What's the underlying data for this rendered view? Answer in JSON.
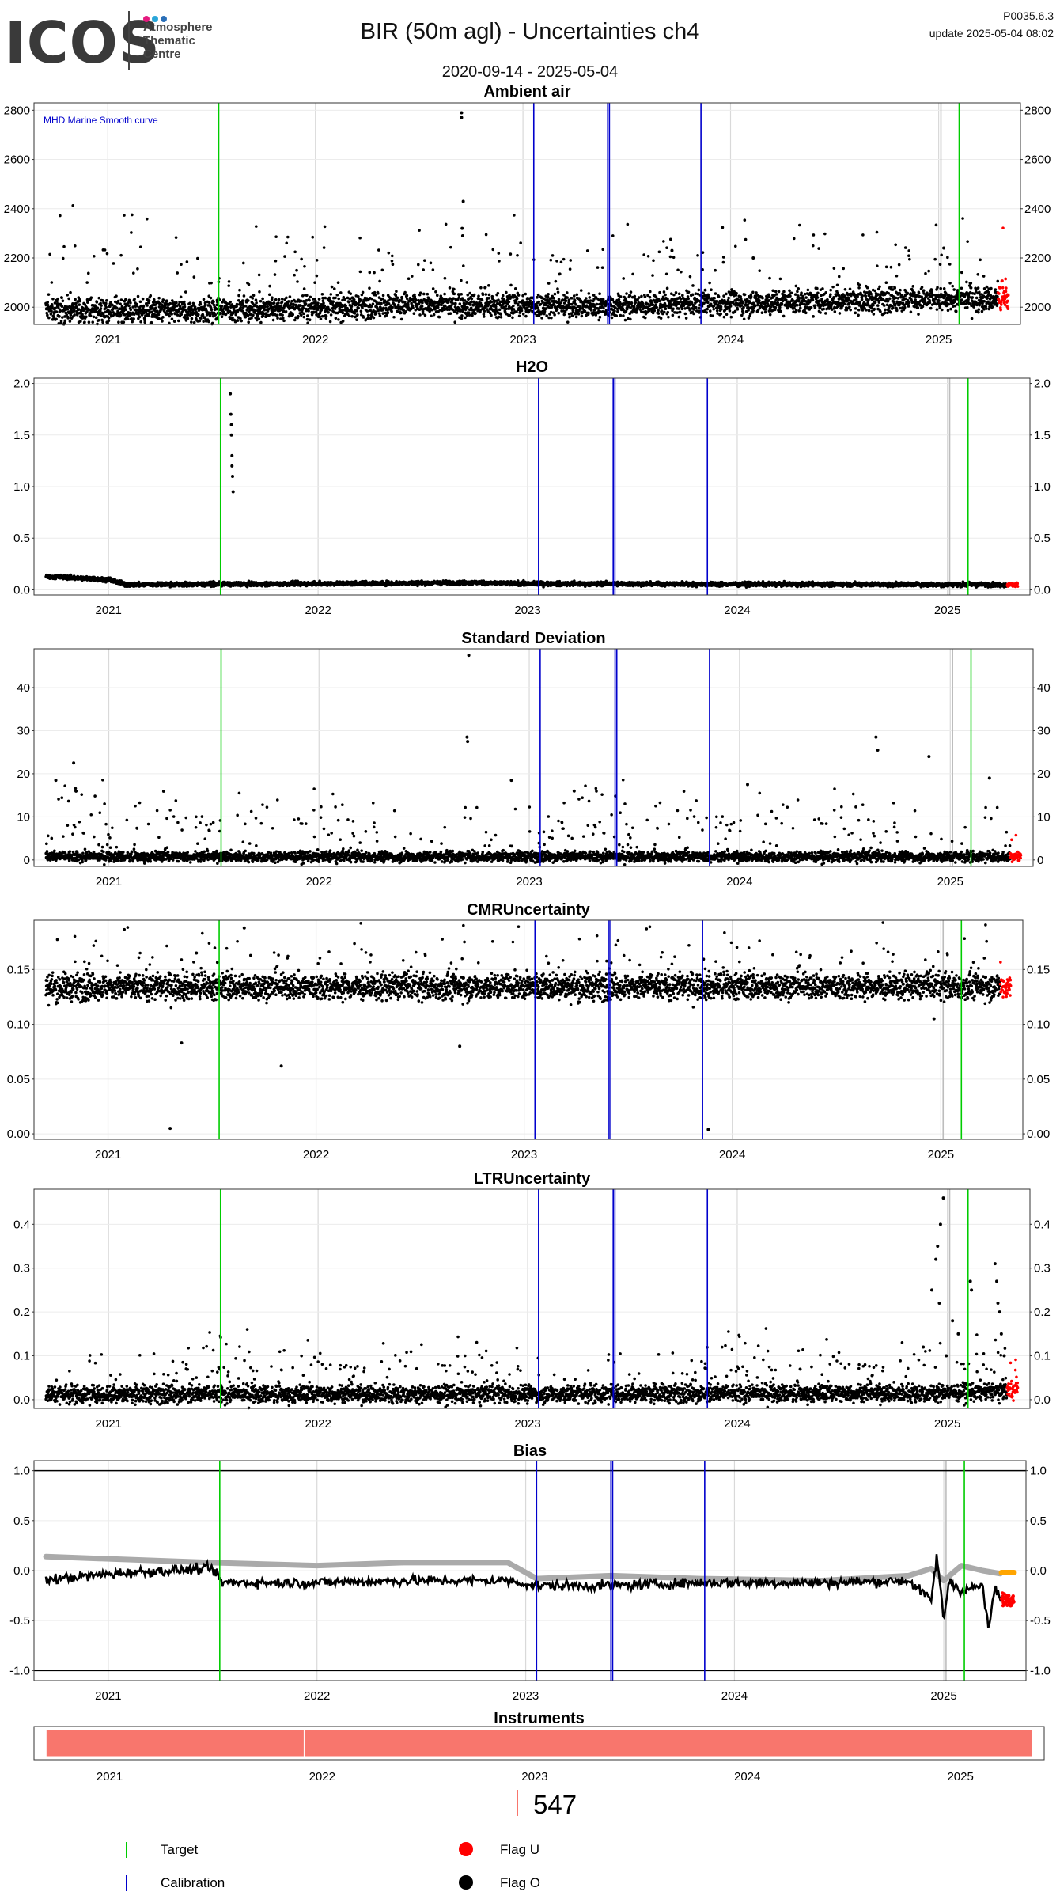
{
  "header": {
    "logo_text": "ICOS",
    "logo_sub": [
      "Atmosphere",
      "Thematic",
      "Centre"
    ],
    "logo_dot_colors": [
      "#e5197f",
      "#2aa6d9",
      "#2a6fb8"
    ],
    "title": "BIR  (50m agl) - Uncertainties ch4",
    "date_range": "2020-09-14 - 2025-05-04",
    "version": "P0035.6.3",
    "update": "update  2025-05-04 08:02"
  },
  "legend": {
    "target_label": "Target",
    "calibration_label": "Calibration",
    "flag_u_label": "Flag U",
    "flag_o_label": "Flag O",
    "target_color": "#00cc00",
    "calibration_color": "#0000cc",
    "flag_u_color": "#ff0000",
    "flag_o_color": "#000000"
  },
  "instrument_count": "547",
  "chart_data": [
    {
      "type": "scatter",
      "title": "Ambient air",
      "annotation": "MHD Marine Smooth curve",
      "xlim": [
        "2020-09-14",
        "2025-05-04"
      ],
      "ylim": [
        1930,
        2830
      ],
      "yticks": [
        2000,
        2200,
        2400,
        2600,
        2800
      ],
      "baseline": 2000,
      "noise": 25,
      "spike_rate": 0.06,
      "spike_amp": 120,
      "trend": [
        [
          "2020-09-14",
          1990
        ],
        [
          "2021-06-01",
          1985
        ],
        [
          "2022-06-01",
          2010
        ],
        [
          "2023-06-01",
          2005
        ],
        [
          "2024-06-01",
          2025
        ],
        [
          "2025-05-04",
          2035
        ]
      ],
      "outliers": [
        [
          "2022-09-15",
          2790
        ],
        [
          "2022-09-15",
          2770
        ],
        [
          "2022-09-18",
          2430
        ],
        [
          "2022-09-16",
          2320
        ],
        [
          "2022-09-17",
          2290
        ],
        [
          "2023-09-20",
          2230
        ],
        [
          "2024-02-10",
          2200
        ],
        [
          "2025-01-10",
          2240
        ]
      ],
      "target_dates": [
        "2021-07-15",
        "2025-02-06"
      ],
      "calibration_dates": [
        "2023-01-20",
        "2023-05-30",
        "2023-06-02",
        "2023-11-10"
      ],
      "gray_line": "2025-01-05",
      "flag_u_range": [
        "2025-04-15",
        "2025-05-04"
      ]
    },
    {
      "type": "scatter",
      "title": "H2O",
      "xlim": [
        "2020-09-14",
        "2025-05-04"
      ],
      "ylim": [
        -0.05,
        2.05
      ],
      "yticks": [
        0.0,
        0.5,
        1.0,
        1.5,
        2.0
      ],
      "baseline": 0.05,
      "noise": 0.01,
      "spike_rate": 0.0,
      "spike_amp": 0,
      "trend": [
        [
          "2020-09-14",
          0.13
        ],
        [
          "2021-01-01",
          0.1
        ],
        [
          "2021-02-01",
          0.05
        ],
        [
          "2022-10-01",
          0.07
        ],
        [
          "2023-01-01",
          0.06
        ],
        [
          "2025-05-04",
          0.05
        ]
      ],
      "outliers": [
        [
          "2021-08-01",
          1.9
        ],
        [
          "2021-08-02",
          1.7
        ],
        [
          "2021-08-03",
          1.5
        ],
        [
          "2021-08-04",
          1.3
        ],
        [
          "2021-08-05",
          1.1
        ],
        [
          "2021-08-06",
          0.95
        ],
        [
          "2021-08-03",
          1.6
        ],
        [
          "2021-08-04",
          1.2
        ]
      ],
      "target_dates": [
        "2021-07-15",
        "2025-02-06"
      ],
      "calibration_dates": [
        "2023-01-20",
        "2023-05-30",
        "2023-06-02",
        "2023-11-10"
      ],
      "gray_line": "2025-01-05",
      "flag_u_range": [
        "2025-04-15",
        "2025-05-04"
      ]
    },
    {
      "type": "scatter",
      "title": "Standard Deviation",
      "xlim": [
        "2020-09-14",
        "2025-05-04"
      ],
      "ylim": [
        -1.5,
        49
      ],
      "yticks": [
        0,
        10,
        20,
        30,
        40
      ],
      "baseline": 0.8,
      "noise": 0.6,
      "spike_rate": 0.08,
      "spike_amp": 5,
      "trend": [
        [
          "2020-09-14",
          0.8
        ],
        [
          "2025-05-04",
          0.8
        ]
      ],
      "outliers": [
        [
          "2020-11-01",
          22.5
        ],
        [
          "2020-10-01",
          18.5
        ],
        [
          "2020-11-05",
          16
        ],
        [
          "2022-09-18",
          47.5
        ],
        [
          "2022-09-15",
          28.5
        ],
        [
          "2022-09-16",
          27.5
        ],
        [
          "2022-12-01",
          18.5
        ],
        [
          "2024-08-25",
          28.5
        ],
        [
          "2024-08-28",
          25.5
        ],
        [
          "2024-11-25",
          24
        ],
        [
          "2025-03-10",
          19
        ],
        [
          "2023-03-20",
          16
        ],
        [
          "2024-01-15",
          17.5
        ]
      ],
      "target_dates": [
        "2021-07-15",
        "2025-02-06"
      ],
      "calibration_dates": [
        "2023-01-20",
        "2023-05-30",
        "2023-06-02",
        "2023-11-10"
      ],
      "gray_line": "2025-01-05",
      "flag_u_range": [
        "2025-04-15",
        "2025-05-04"
      ]
    },
    {
      "type": "scatter",
      "title": "CMRUncertainty",
      "xlim": [
        "2020-09-14",
        "2025-05-04"
      ],
      "ylim": [
        -0.005,
        0.195
      ],
      "yticks": [
        0.0,
        0.05,
        0.1,
        0.15
      ],
      "baseline": 0.134,
      "noise": 0.006,
      "spike_rate": 0.04,
      "spike_amp": 0.02,
      "trend": [
        [
          "2020-09-14",
          0.134
        ],
        [
          "2025-05-04",
          0.135
        ]
      ],
      "outliers": [
        [
          "2021-04-20",
          0.005
        ],
        [
          "2021-05-10",
          0.083
        ],
        [
          "2021-11-01",
          0.062
        ],
        [
          "2021-08-28",
          0.188
        ],
        [
          "2022-09-10",
          0.08
        ],
        [
          "2023-11-20",
          0.004
        ],
        [
          "2024-12-20",
          0.105
        ],
        [
          "2021-06-05",
          0.165
        ]
      ],
      "target_dates": [
        "2021-07-15",
        "2025-02-06"
      ],
      "calibration_dates": [
        "2023-01-20",
        "2023-05-30",
        "2023-06-02",
        "2023-11-10"
      ],
      "gray_line": "2025-01-05",
      "flag_u_range": [
        "2025-04-15",
        "2025-05-04"
      ]
    },
    {
      "type": "scatter",
      "title": "LTRUncertainty",
      "xlim": [
        "2020-09-14",
        "2025-05-04"
      ],
      "ylim": [
        -0.02,
        0.48
      ],
      "yticks": [
        0.0,
        0.1,
        0.2,
        0.3,
        0.4
      ],
      "baseline": 0.012,
      "noise": 0.01,
      "spike_rate": 0.08,
      "spike_amp": 0.04,
      "trend": [
        [
          "2020-09-14",
          0.012
        ],
        [
          "2024-11-01",
          0.015
        ],
        [
          "2025-05-04",
          0.02
        ]
      ],
      "outliers": [
        [
          "2024-12-25",
          0.46
        ],
        [
          "2024-12-20",
          0.4
        ],
        [
          "2024-12-15",
          0.35
        ],
        [
          "2024-12-12",
          0.32
        ],
        [
          "2024-12-05",
          0.25
        ],
        [
          "2024-12-18",
          0.22
        ],
        [
          "2025-01-10",
          0.18
        ],
        [
          "2025-01-20",
          0.15
        ],
        [
          "2025-02-10",
          0.27
        ],
        [
          "2025-02-12",
          0.25
        ],
        [
          "2025-03-25",
          0.31
        ],
        [
          "2025-03-28",
          0.27
        ],
        [
          "2025-03-30",
          0.22
        ],
        [
          "2025-04-02",
          0.2
        ],
        [
          "2025-04-05",
          0.15
        ],
        [
          "2025-04-10",
          0.1
        ],
        [
          "2024-11-20",
          0.12
        ],
        [
          "2024-12-30",
          0.1
        ]
      ],
      "target_dates": [
        "2021-07-15",
        "2025-02-06"
      ],
      "calibration_dates": [
        "2023-01-20",
        "2023-05-30",
        "2023-06-02",
        "2023-11-10"
      ],
      "gray_line": "2025-01-05",
      "flag_u_range": [
        "2025-04-15",
        "2025-05-04"
      ]
    },
    {
      "type": "line",
      "title": "Bias",
      "xlim": [
        "2020-09-14",
        "2025-05-04"
      ],
      "ylim": [
        -1.1,
        1.1
      ],
      "yticks": [
        -1.0,
        -0.5,
        0.0,
        0.5,
        1.0
      ],
      "series": [
        {
          "points": [
            [
              "2020-09-14",
              -0.09
            ],
            [
              "2021-02-01",
              -0.02
            ],
            [
              "2021-07-01",
              0.02
            ],
            [
              "2021-07-20",
              -0.12
            ],
            [
              "2022-01-01",
              -0.12
            ],
            [
              "2022-06-01",
              -0.1
            ],
            [
              "2022-12-01",
              -0.1
            ],
            [
              "2023-01-20",
              -0.15
            ],
            [
              "2023-06-01",
              -0.15
            ],
            [
              "2023-11-01",
              -0.12
            ],
            [
              "2024-06-01",
              -0.12
            ],
            [
              "2024-11-01",
              -0.1
            ],
            [
              "2024-12-10",
              -0.3
            ],
            [
              "2024-12-20",
              0.15
            ],
            [
              "2025-01-01",
              -0.5
            ],
            [
              "2025-01-10",
              -0.1
            ],
            [
              "2025-02-01",
              -0.2
            ],
            [
              "2025-03-10",
              -0.15
            ],
            [
              "2025-03-20",
              -0.6
            ],
            [
              "2025-04-01",
              -0.15
            ],
            [
              "2025-04-10",
              -0.3
            ]
          ]
        },
        {
          "points": [
            [
              "2020-09-14",
              0.14
            ],
            [
              "2021-07-01",
              0.08
            ],
            [
              "2022-01-01",
              0.05
            ],
            [
              "2022-06-01",
              0.08
            ],
            [
              "2022-12-01",
              0.08
            ],
            [
              "2023-01-20",
              -0.08
            ],
            [
              "2023-06-01",
              -0.05
            ],
            [
              "2023-11-01",
              -0.08
            ],
            [
              "2024-06-01",
              -0.1
            ],
            [
              "2024-11-01",
              -0.05
            ],
            [
              "2024-12-10",
              0.02
            ],
            [
              "2025-01-01",
              -0.1
            ],
            [
              "2025-02-01",
              0.05
            ],
            [
              "2025-03-10",
              0.0
            ],
            [
              "2025-04-10",
              -0.03
            ]
          ]
        }
      ],
      "flag_o_range": [
        "2025-04-12",
        "2025-05-04"
      ],
      "hlines": [
        -1.0,
        1.0
      ],
      "target_dates": [
        "2021-07-15",
        "2025-02-06"
      ],
      "calibration_dates": [
        "2023-01-20",
        "2023-05-30",
        "2023-06-02",
        "2023-11-10"
      ],
      "gray_line": "2025-01-05",
      "flag_u_range": [
        "2025-04-15",
        "2025-05-04"
      ]
    },
    {
      "type": "bar",
      "title": "Instruments",
      "xlim": [
        "2020-09-14",
        "2025-05-04"
      ],
      "segments": [
        [
          "2020-09-14",
          "2021-12-01"
        ],
        [
          "2021-12-01",
          "2025-05-04"
        ]
      ]
    }
  ],
  "tick_years": [
    "2021",
    "2022",
    "2023",
    "2024",
    "2025"
  ],
  "colors": {
    "flag_o_orange": "#ffa500",
    "bias_gray": "#aaaaaa",
    "instrument": "#f8766d"
  }
}
